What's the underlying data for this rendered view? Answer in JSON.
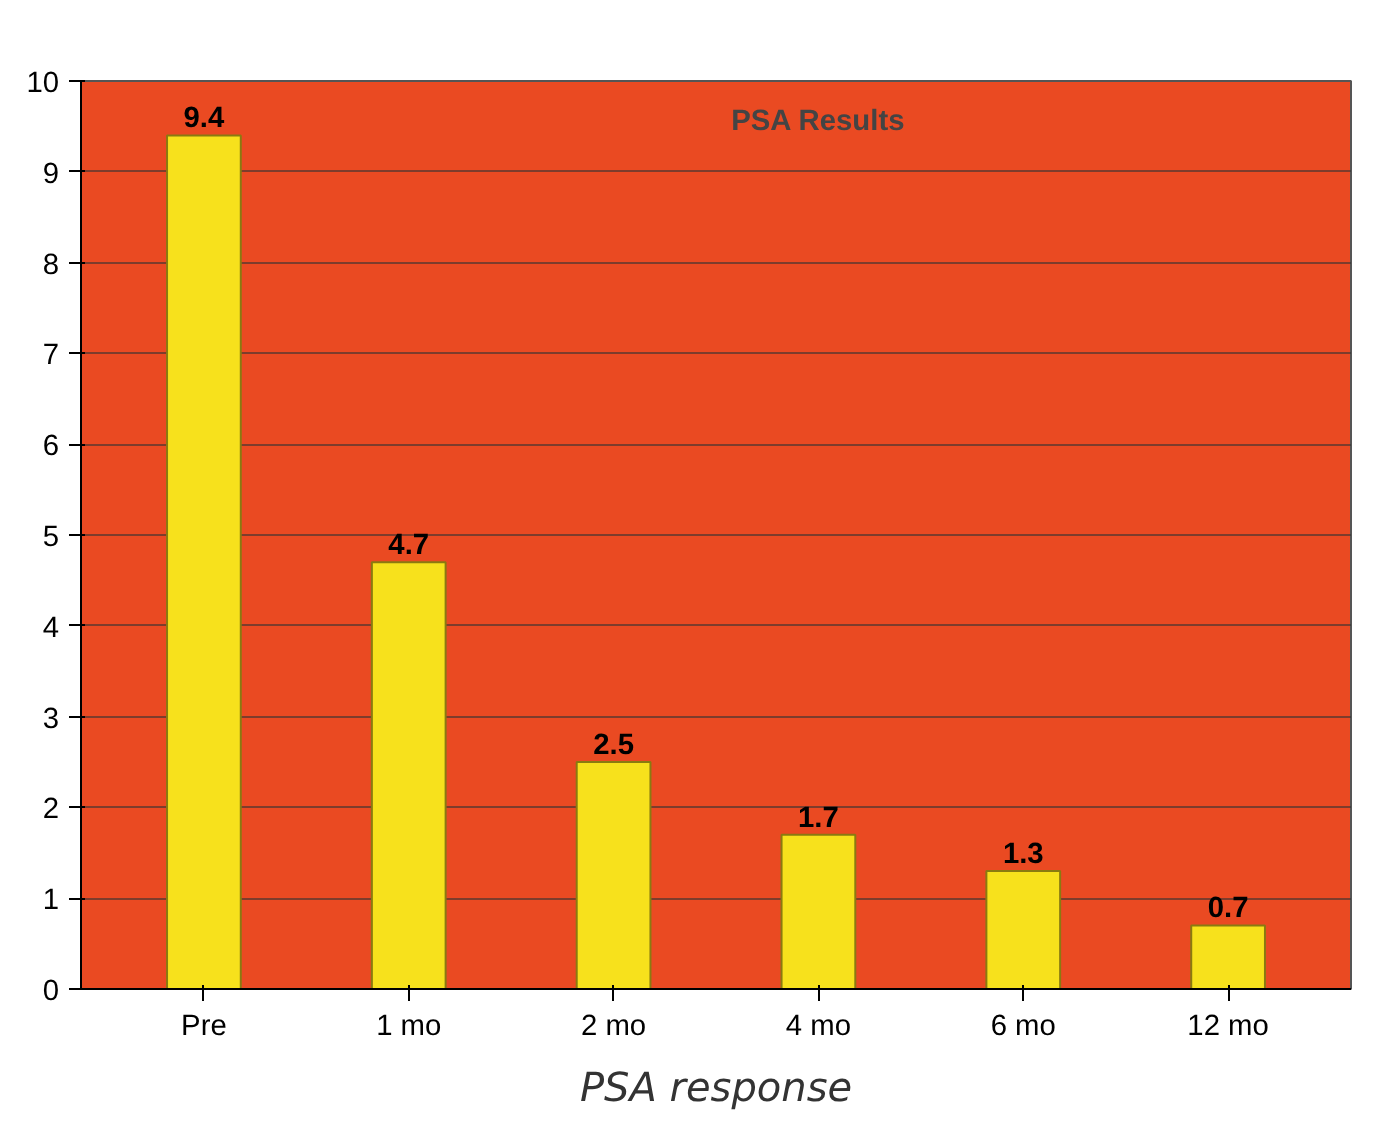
{
  "chart_data": {
    "type": "bar",
    "title": "PSA Results",
    "categories": [
      "Pre",
      "1 mo",
      "2 mo",
      "4 mo",
      "6 mo",
      "12 mo"
    ],
    "values": [
      9.4,
      4.7,
      2.5,
      1.7,
      1.3,
      0.7
    ],
    "color": "#f7e11c",
    "ylim": [
      0,
      10
    ],
    "yticks": [
      0,
      1,
      2,
      3,
      4,
      5,
      6,
      7,
      8,
      9,
      10
    ],
    "grid": "y",
    "data_labels": true,
    "annotations": [
      "PSA response"
    ]
  }
}
